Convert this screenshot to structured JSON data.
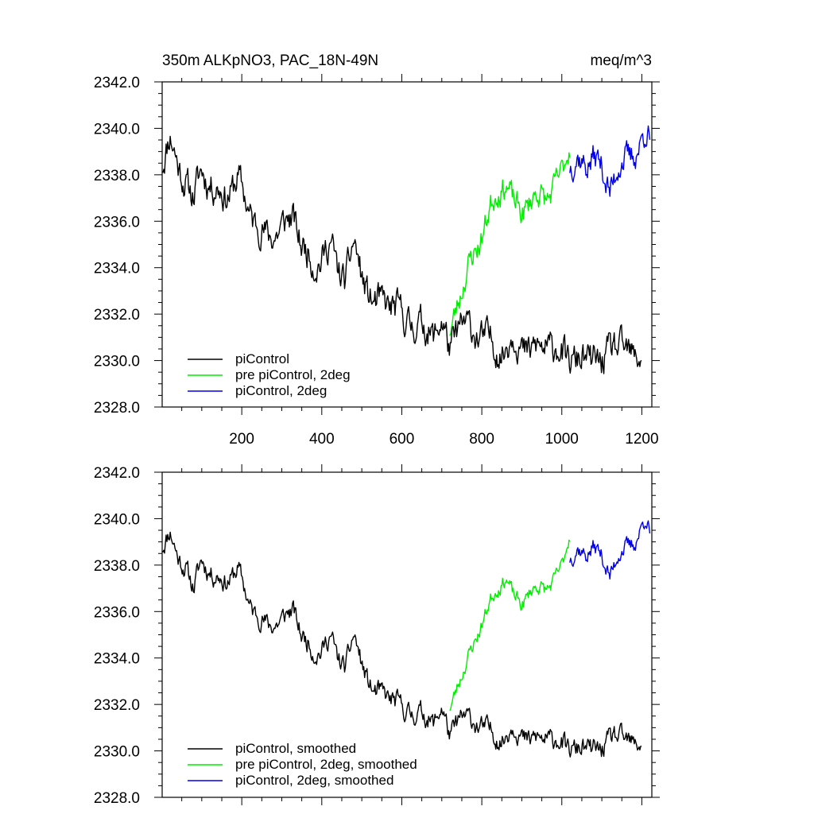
{
  "chart_data": [
    {
      "type": "line",
      "title": "350m ALKpNO3, PAC_18N-49N",
      "title_right": "meq/m^3",
      "xlabel": "",
      "ylabel": "",
      "xlim": [
        1,
        1225
      ],
      "ylim": [
        2328.0,
        2342.0
      ],
      "x_ticks": [
        200,
        400,
        600,
        800,
        1000,
        1200
      ],
      "x_tick_labels": [
        "200",
        "400",
        "600",
        "800",
        "1000",
        "1200"
      ],
      "y_ticks": [
        2328.0,
        2330.0,
        2332.0,
        2334.0,
        2336.0,
        2338.0,
        2340.0,
        2342.0
      ],
      "y_tick_labels": [
        "2328.0",
        "2330.0",
        "2332.0",
        "2334.0",
        "2336.0",
        "2338.0",
        "2340.0",
        "2342.0"
      ],
      "grid": false,
      "legend_position": "bottom-left",
      "series": [
        {
          "name": "piControl",
          "color": "#000000",
          "x_start": 1,
          "x_end": 1200,
          "anchors": [
            [
              1,
              2338.6
            ],
            [
              20,
              2339.6
            ],
            [
              40,
              2338.4
            ],
            [
              60,
              2337.8
            ],
            [
              80,
              2336.9
            ],
            [
              100,
              2338.3
            ],
            [
              130,
              2337.4
            ],
            [
              160,
              2337.1
            ],
            [
              190,
              2337.8
            ],
            [
              220,
              2336.4
            ],
            [
              260,
              2335.3
            ],
            [
              300,
              2335.7
            ],
            [
              330,
              2336.2
            ],
            [
              350,
              2335.0
            ],
            [
              380,
              2334.1
            ],
            [
              400,
              2334.5
            ],
            [
              420,
              2335.0
            ],
            [
              440,
              2333.9
            ],
            [
              460,
              2333.6
            ],
            [
              480,
              2335.0
            ],
            [
              500,
              2333.7
            ],
            [
              530,
              2332.3
            ],
            [
              560,
              2332.6
            ],
            [
              600,
              2331.9
            ],
            [
              640,
              2331.5
            ],
            [
              680,
              2331.2
            ],
            [
              700,
              2331.6
            ],
            [
              720,
              2330.4
            ],
            [
              740,
              2331.5
            ],
            [
              780,
              2331.3
            ],
            [
              820,
              2330.8
            ],
            [
              850,
              2330.4
            ],
            [
              880,
              2331.0
            ],
            [
              920,
              2330.3
            ],
            [
              960,
              2330.7
            ],
            [
              1000,
              2330.3
            ],
            [
              1040,
              2329.9
            ],
            [
              1080,
              2330.2
            ],
            [
              1100,
              2329.7
            ],
            [
              1130,
              2330.8
            ],
            [
              1160,
              2330.2
            ],
            [
              1200,
              2330.3
            ]
          ],
          "noise_amp": 0.55,
          "seed": 11
        },
        {
          "name": "pre piControl, 2deg",
          "color": "#00ee00",
          "x_start": 720,
          "x_end": 1020,
          "anchors": [
            [
              720,
              2331.2
            ],
            [
              740,
              2332.6
            ],
            [
              760,
              2333.6
            ],
            [
              780,
              2334.6
            ],
            [
              800,
              2335.4
            ],
            [
              820,
              2336.5
            ],
            [
              840,
              2337.3
            ],
            [
              860,
              2337.7
            ],
            [
              880,
              2336.7
            ],
            [
              900,
              2336.4
            ],
            [
              920,
              2336.9
            ],
            [
              940,
              2337.1
            ],
            [
              960,
              2337.0
            ],
            [
              980,
              2337.4
            ],
            [
              1000,
              2338.0
            ],
            [
              1020,
              2339.4
            ]
          ],
          "noise_amp": 0.45,
          "seed": 23
        },
        {
          "name": "piControl, 2deg",
          "color": "#0000ee",
          "x_start": 1020,
          "x_end": 1220,
          "anchors": [
            [
              1020,
              2338.4
            ],
            [
              1040,
              2338.6
            ],
            [
              1060,
              2338.5
            ],
            [
              1080,
              2338.8
            ],
            [
              1100,
              2338.2
            ],
            [
              1120,
              2337.4
            ],
            [
              1140,
              2338.3
            ],
            [
              1160,
              2338.6
            ],
            [
              1180,
              2339.0
            ],
            [
              1195,
              2339.2
            ],
            [
              1210,
              2339.8
            ],
            [
              1220,
              2339.4
            ]
          ],
          "noise_amp": 0.5,
          "seed": 37
        }
      ]
    },
    {
      "type": "line",
      "title": "",
      "xlabel": "",
      "ylabel": "",
      "xlim": [
        1,
        1225
      ],
      "ylim": [
        2328.0,
        2342.0
      ],
      "x_ticks": [
        200,
        400,
        600,
        800,
        1000,
        1200
      ],
      "y_ticks": [
        2328.0,
        2330.0,
        2332.0,
        2334.0,
        2336.0,
        2338.0,
        2340.0,
        2342.0
      ],
      "y_tick_labels": [
        "2328.0",
        "2330.0",
        "2332.0",
        "2334.0",
        "2336.0",
        "2338.0",
        "2340.0",
        "2342.0"
      ],
      "grid": false,
      "legend_position": "bottom-left",
      "series": [
        {
          "name": "piControl, smoothed",
          "color": "#000000",
          "x_start": 1,
          "x_end": 1200,
          "anchors": [
            [
              1,
              2338.9
            ],
            [
              20,
              2339.4
            ],
            [
              40,
              2338.3
            ],
            [
              60,
              2338.0
            ],
            [
              80,
              2336.9
            ],
            [
              100,
              2338.3
            ],
            [
              130,
              2337.5
            ],
            [
              160,
              2337.3
            ],
            [
              190,
              2337.8
            ],
            [
              220,
              2336.3
            ],
            [
              260,
              2335.4
            ],
            [
              300,
              2335.6
            ],
            [
              330,
              2336.1
            ],
            [
              350,
              2335.0
            ],
            [
              380,
              2334.2
            ],
            [
              400,
              2334.4
            ],
            [
              420,
              2334.9
            ],
            [
              440,
              2334.0
            ],
            [
              460,
              2333.7
            ],
            [
              480,
              2334.9
            ],
            [
              500,
              2333.8
            ],
            [
              530,
              2332.4
            ],
            [
              560,
              2332.5
            ],
            [
              600,
              2331.8
            ],
            [
              640,
              2331.6
            ],
            [
              680,
              2331.3
            ],
            [
              700,
              2331.8
            ],
            [
              720,
              2330.6
            ],
            [
              740,
              2331.4
            ],
            [
              780,
              2331.3
            ],
            [
              820,
              2330.8
            ],
            [
              850,
              2330.5
            ],
            [
              880,
              2331.0
            ],
            [
              920,
              2330.4
            ],
            [
              960,
              2330.6
            ],
            [
              1000,
              2330.3
            ],
            [
              1040,
              2330.0
            ],
            [
              1080,
              2330.2
            ],
            [
              1100,
              2329.9
            ],
            [
              1130,
              2330.8
            ],
            [
              1160,
              2330.3
            ],
            [
              1200,
              2330.4
            ]
          ],
          "noise_amp": 0.35,
          "seed": 11
        },
        {
          "name": "pre piControl, 2deg, smoothed",
          "color": "#00ee00",
          "x_start": 720,
          "x_end": 1020,
          "anchors": [
            [
              720,
              2331.8
            ],
            [
              740,
              2332.9
            ],
            [
              760,
              2333.7
            ],
            [
              780,
              2334.6
            ],
            [
              800,
              2335.5
            ],
            [
              820,
              2336.4
            ],
            [
              840,
              2337.0
            ],
            [
              860,
              2337.5
            ],
            [
              880,
              2336.6
            ],
            [
              900,
              2336.3
            ],
            [
              920,
              2336.9
            ],
            [
              940,
              2337.0
            ],
            [
              960,
              2337.0
            ],
            [
              980,
              2337.3
            ],
            [
              1000,
              2337.9
            ],
            [
              1020,
              2339.4
            ]
          ],
          "noise_amp": 0.25,
          "seed": 23
        },
        {
          "name": "piControl, 2deg, smoothed",
          "color": "#0000ee",
          "x_start": 1020,
          "x_end": 1220,
          "anchors": [
            [
              1020,
              2338.3
            ],
            [
              1040,
              2338.6
            ],
            [
              1060,
              2338.5
            ],
            [
              1080,
              2338.8
            ],
            [
              1100,
              2338.3
            ],
            [
              1120,
              2337.6
            ],
            [
              1140,
              2338.4
            ],
            [
              1160,
              2338.7
            ],
            [
              1180,
              2339.0
            ],
            [
              1195,
              2339.4
            ],
            [
              1210,
              2340.0
            ],
            [
              1220,
              2339.3
            ]
          ],
          "noise_amp": 0.3,
          "seed": 37
        }
      ]
    }
  ]
}
